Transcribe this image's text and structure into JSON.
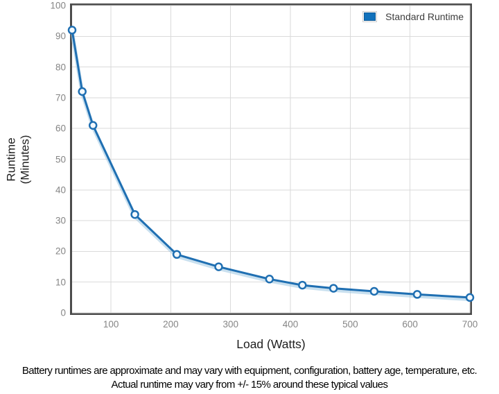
{
  "chart_data": {
    "type": "line",
    "title": "",
    "xlabel": "Load (Watts)",
    "ylabel": "Runtime (Minutes)",
    "ylabel_lines": [
      "Runtime",
      "(Minutes)"
    ],
    "xlim": [
      35,
      700
    ],
    "ylim": [
      0,
      100
    ],
    "x_ticks": [
      100,
      200,
      300,
      400,
      500,
      600,
      700
    ],
    "y_ticks": [
      0,
      10,
      20,
      30,
      40,
      50,
      60,
      70,
      80,
      90,
      100
    ],
    "grid": true,
    "legend": {
      "position": "top-right-inside",
      "items": [
        {
          "label": "Standard Runtime",
          "swatch_color": "#1272bc"
        }
      ]
    },
    "series": [
      {
        "name": "Standard Runtime",
        "marker": "open-circle",
        "color": "#1f6fb2",
        "points": [
          {
            "x": 35,
            "y": 92
          },
          {
            "x": 52,
            "y": 72
          },
          {
            "x": 70,
            "y": 61
          },
          {
            "x": 140,
            "y": 32
          },
          {
            "x": 210,
            "y": 19
          },
          {
            "x": 280,
            "y": 15
          },
          {
            "x": 365,
            "y": 11
          },
          {
            "x": 420,
            "y": 9
          },
          {
            "x": 472,
            "y": 8
          },
          {
            "x": 540,
            "y": 7
          },
          {
            "x": 612,
            "y": 6
          },
          {
            "x": 700,
            "y": 5
          }
        ]
      }
    ]
  },
  "colors": {
    "line": "#1f6fb2",
    "line_glow": "#9dc6e2",
    "marker_fill": "#f3f9fd",
    "grid": "#dadada",
    "plot_border": "#4c4c4c",
    "tick_label": "#858585",
    "axis_title": "#202020",
    "legend_text": "#3d3d3d"
  },
  "footer": {
    "line1": "Battery runtimes are approximate and may vary with equipment, configuration, battery age, temperature, etc.",
    "line2": "Actual runtime may vary from +/- 15% around these typical values"
  }
}
